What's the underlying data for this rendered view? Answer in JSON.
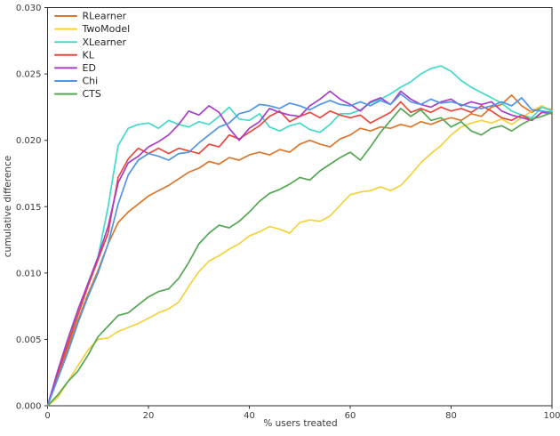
{
  "figure": {
    "xlabel": "% users treated",
    "ylabel": "cumulative difference"
  },
  "colors": {
    "background": "#ffffff",
    "spine": "#2e2e2e",
    "tick": "#2e2e2e",
    "tick_label": "#3a3a3a",
    "legend_text": "#262626"
  },
  "chart_data": {
    "type": "line",
    "title": "",
    "xlabel": "% users treated",
    "ylabel": "cumulative difference",
    "xlim": [
      0,
      100
    ],
    "ylim": [
      0,
      0.03
    ],
    "x_tick_labels": [
      "0",
      "20",
      "40",
      "60",
      "80",
      "100"
    ],
    "x_tick_values": [
      0,
      20,
      40,
      60,
      80,
      100
    ],
    "y_tick_labels": [
      "0.000",
      "0.005",
      "0.010",
      "0.015",
      "0.020",
      "0.025",
      "0.030"
    ],
    "y_tick_values": [
      0,
      0.005,
      0.01,
      0.015,
      0.02,
      0.025,
      0.03
    ],
    "grid": false,
    "legend_position": "upper left",
    "x": [
      0,
      2,
      4,
      6,
      8,
      10,
      12,
      14,
      16,
      18,
      20,
      22,
      24,
      26,
      28,
      30,
      32,
      34,
      36,
      38,
      40,
      42,
      44,
      46,
      48,
      50,
      52,
      54,
      56,
      58,
      60,
      62,
      64,
      66,
      68,
      70,
      72,
      74,
      76,
      78,
      80,
      82,
      84,
      86,
      88,
      90,
      92,
      94,
      96,
      98,
      100
    ],
    "series": [
      {
        "name": "RLearner",
        "color": "#d9772e",
        "values": [
          0,
          0.0022,
          0.0043,
          0.0064,
          0.0084,
          0.0102,
          0.0122,
          0.0138,
          0.0146,
          0.0152,
          0.0158,
          0.0162,
          0.0166,
          0.0171,
          0.0176,
          0.0179,
          0.0184,
          0.0182,
          0.0187,
          0.0185,
          0.0189,
          0.0191,
          0.0189,
          0.0193,
          0.0191,
          0.0197,
          0.02,
          0.0197,
          0.0195,
          0.0201,
          0.0204,
          0.0209,
          0.0207,
          0.021,
          0.0209,
          0.0212,
          0.021,
          0.0214,
          0.0212,
          0.0215,
          0.0217,
          0.0215,
          0.022,
          0.0218,
          0.0225,
          0.0227,
          0.0234,
          0.0226,
          0.0221,
          0.0225,
          0.0223
        ]
      },
      {
        "name": "TwoModel",
        "color": "#f2d13e",
        "values": [
          0,
          0.0006,
          0.0018,
          0.003,
          0.0042,
          0.005,
          0.0051,
          0.0056,
          0.0059,
          0.0062,
          0.0066,
          0.007,
          0.0073,
          0.0078,
          0.009,
          0.0101,
          0.0109,
          0.0113,
          0.0118,
          0.0122,
          0.0128,
          0.0131,
          0.0135,
          0.0133,
          0.013,
          0.0138,
          0.014,
          0.0139,
          0.0143,
          0.0151,
          0.0159,
          0.0161,
          0.0162,
          0.0165,
          0.0162,
          0.0166,
          0.0174,
          0.0183,
          0.019,
          0.0196,
          0.0204,
          0.021,
          0.0213,
          0.0215,
          0.0213,
          0.0216,
          0.0212,
          0.0217,
          0.0222,
          0.0226,
          0.0222
        ]
      },
      {
        "name": "XLearner",
        "color": "#42d9c8",
        "values": [
          0,
          0.0025,
          0.0048,
          0.007,
          0.0092,
          0.0112,
          0.015,
          0.0196,
          0.0209,
          0.0212,
          0.0213,
          0.0209,
          0.0215,
          0.0212,
          0.021,
          0.0214,
          0.0212,
          0.0218,
          0.0225,
          0.0216,
          0.0215,
          0.022,
          0.021,
          0.0207,
          0.0211,
          0.0213,
          0.0208,
          0.0206,
          0.0212,
          0.022,
          0.022,
          0.0223,
          0.0228,
          0.0231,
          0.0235,
          0.024,
          0.0244,
          0.025,
          0.0254,
          0.0256,
          0.0252,
          0.0245,
          0.024,
          0.0236,
          0.0232,
          0.0228,
          0.0222,
          0.0219,
          0.0217,
          0.0225,
          0.0222
        ]
      },
      {
        "name": "KL",
        "color": "#e8483c",
        "values": [
          0,
          0.0024,
          0.0046,
          0.0068,
          0.009,
          0.011,
          0.013,
          0.0172,
          0.0186,
          0.0194,
          0.019,
          0.0194,
          0.019,
          0.0194,
          0.0192,
          0.019,
          0.0197,
          0.0195,
          0.0204,
          0.0201,
          0.0206,
          0.0211,
          0.0218,
          0.0222,
          0.0214,
          0.0218,
          0.0221,
          0.0217,
          0.0222,
          0.0219,
          0.0217,
          0.0219,
          0.0213,
          0.0217,
          0.0221,
          0.0229,
          0.0221,
          0.0224,
          0.0221,
          0.0225,
          0.0222,
          0.0224,
          0.0221,
          0.0226,
          0.0222,
          0.0217,
          0.0215,
          0.0219,
          0.0215,
          0.0221,
          0.022
        ]
      },
      {
        "name": "ED",
        "color": "#a93cc5",
        "values": [
          0,
          0.0026,
          0.005,
          0.0072,
          0.0092,
          0.0112,
          0.0135,
          0.0168,
          0.0183,
          0.0188,
          0.0195,
          0.0199,
          0.0204,
          0.0212,
          0.0222,
          0.0219,
          0.0226,
          0.0221,
          0.0209,
          0.02,
          0.0209,
          0.0214,
          0.0224,
          0.0221,
          0.0219,
          0.0218,
          0.0226,
          0.0231,
          0.0237,
          0.0231,
          0.0227,
          0.0222,
          0.0229,
          0.0232,
          0.0227,
          0.0237,
          0.0231,
          0.0227,
          0.0225,
          0.0229,
          0.0231,
          0.0226,
          0.0229,
          0.0227,
          0.0229,
          0.0222,
          0.0219,
          0.0217,
          0.0215,
          0.0221,
          0.0221
        ]
      },
      {
        "name": "Chi",
        "color": "#5295e2",
        "values": [
          0,
          0.002,
          0.004,
          0.0062,
          0.0082,
          0.01,
          0.0122,
          0.0152,
          0.0174,
          0.0185,
          0.019,
          0.0188,
          0.0185,
          0.019,
          0.0191,
          0.0198,
          0.0204,
          0.021,
          0.0213,
          0.022,
          0.0222,
          0.0227,
          0.0226,
          0.0224,
          0.0228,
          0.0226,
          0.0223,
          0.0227,
          0.023,
          0.0227,
          0.0226,
          0.0229,
          0.0226,
          0.023,
          0.0227,
          0.0235,
          0.0229,
          0.0227,
          0.0231,
          0.0228,
          0.0229,
          0.0227,
          0.0225,
          0.0224,
          0.0226,
          0.0229,
          0.0226,
          0.0232,
          0.0223,
          0.0222,
          0.0221
        ]
      },
      {
        "name": "CTS",
        "color": "#53a653",
        "values": [
          0,
          0.0008,
          0.0018,
          0.0026,
          0.0038,
          0.0052,
          0.006,
          0.0068,
          0.007,
          0.0076,
          0.0082,
          0.0086,
          0.0088,
          0.0096,
          0.0108,
          0.0122,
          0.013,
          0.0136,
          0.0134,
          0.0139,
          0.0146,
          0.0154,
          0.016,
          0.0163,
          0.0167,
          0.0172,
          0.017,
          0.0177,
          0.0182,
          0.0187,
          0.0191,
          0.0185,
          0.0195,
          0.0206,
          0.0215,
          0.0224,
          0.0218,
          0.0223,
          0.0215,
          0.0217,
          0.021,
          0.0214,
          0.0207,
          0.0204,
          0.0209,
          0.0211,
          0.0207,
          0.0212,
          0.0216,
          0.0218,
          0.0221
        ]
      }
    ]
  }
}
